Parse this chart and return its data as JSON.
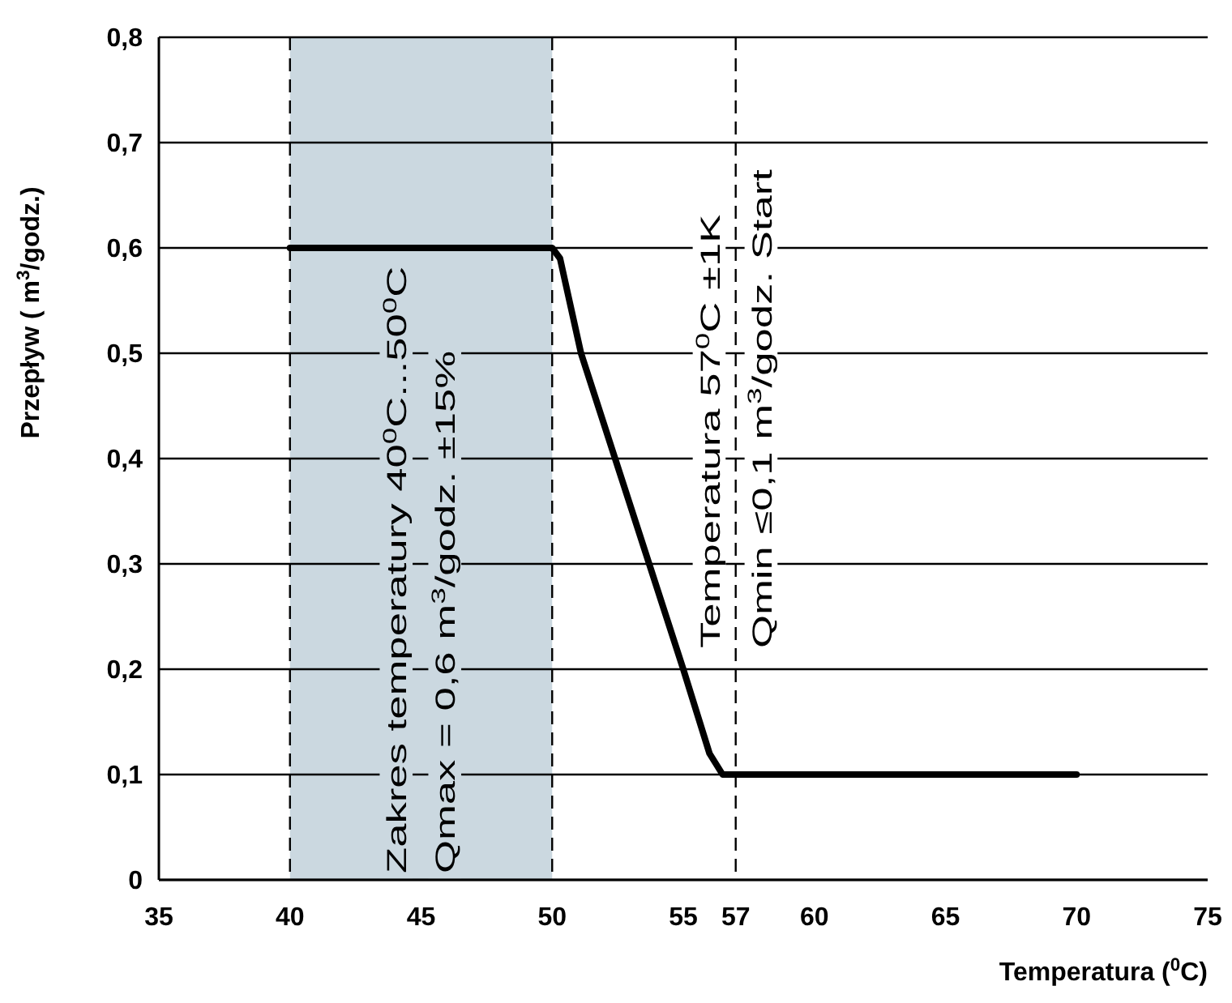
{
  "chart_data": {
    "type": "line",
    "xlabel": "Temperatura  ($^{0}$C)",
    "ylabel": "Przepływ ( m$^{3}$/godz.)",
    "x": [
      40,
      50,
      50.3,
      51.1,
      52.4,
      53.7,
      55,
      56,
      56.5,
      57,
      70
    ],
    "series": [
      {
        "color": "#000000",
        "values": [
          0.6,
          0.6,
          0.59,
          0.5,
          0.4,
          0.3,
          0.2,
          0.12,
          0.1,
          0.1,
          0.1
        ]
      }
    ],
    "xlim": [
      35,
      75
    ],
    "xticks": [
      35,
      40,
      45,
      50,
      55,
      57,
      60,
      65,
      70,
      75
    ],
    "ylim": [
      0,
      0.8
    ],
    "yticks": [
      0,
      {
        "value": 0.1,
        "label": "0,1"
      },
      {
        "value": 0.2,
        "label": "0,2"
      },
      {
        "value": 0.3,
        "label": "0,3"
      },
      {
        "value": 0.4,
        "label": "0,4"
      },
      {
        "value": 0.5,
        "label": "0,5"
      },
      {
        "value": 0.6,
        "label": "0,6"
      },
      {
        "value": 0.7,
        "label": "0,7"
      },
      {
        "value": 0.8,
        "label": "0,8"
      }
    ],
    "grid": "y",
    "line_style": "solid",
    "marker": "none",
    "bands": [
      {
        "axis": "x",
        "from": 40,
        "to": 50,
        "color": "#cbd8e0",
        "label": "Zakres temperatury 40$^{0}$C...50$^{0}$C\nQmax = 0,6 m$^{3}$/godz. ±15%"
      }
    ],
    "ref_lines": [
      {
        "axis": "x",
        "value": 40,
        "line_style": "dashed"
      },
      {
        "axis": "x",
        "value": 50,
        "line_style": "dashed"
      },
      {
        "axis": "x",
        "value": 57,
        "line_style": "dashed",
        "label": "Temperatura 57$^{0}$C ±1K\nQmin  ≤0,1 m$^{3}$/godz. Start"
      }
    ]
  }
}
